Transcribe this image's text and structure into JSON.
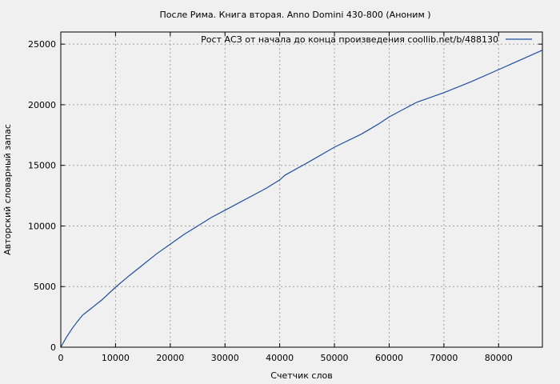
{
  "chart_data": {
    "type": "line",
    "title": "После Рима. Книга вторая. Anno Domini 430-800 (Аноним )",
    "xlabel": "Счетчик слов",
    "ylabel": "Авторский словарный запас",
    "xlim": [
      0,
      88000
    ],
    "ylim": [
      0,
      26000
    ],
    "x_ticks": [
      0,
      10000,
      20000,
      30000,
      40000,
      50000,
      60000,
      70000,
      80000
    ],
    "y_ticks": [
      0,
      5000,
      10000,
      15000,
      20000,
      25000
    ],
    "grid": true,
    "legend_position": "top-right",
    "series": [
      {
        "name": "Рост АСЗ от начала до конца произведения  coollib.net/b/488130",
        "color": "#1f4fa0",
        "x": [
          0,
          1000,
          2000,
          3000,
          4000,
          5000,
          7500,
          10000,
          12500,
          15000,
          17500,
          20000,
          22500,
          25000,
          27500,
          30000,
          32500,
          35000,
          37500,
          40000,
          41000,
          45000,
          50000,
          55000,
          58000,
          60000,
          65000,
          70000,
          75000,
          80000,
          85000,
          88000
        ],
        "y": [
          0,
          800,
          1500,
          2100,
          2650,
          3000,
          3900,
          4950,
          5900,
          6800,
          7700,
          8500,
          9300,
          10000,
          10700,
          11300,
          11900,
          12500,
          13100,
          13800,
          14200,
          15200,
          16500,
          17600,
          18400,
          19000,
          20200,
          21000,
          21900,
          22900,
          23900,
          24500
        ]
      }
    ]
  }
}
